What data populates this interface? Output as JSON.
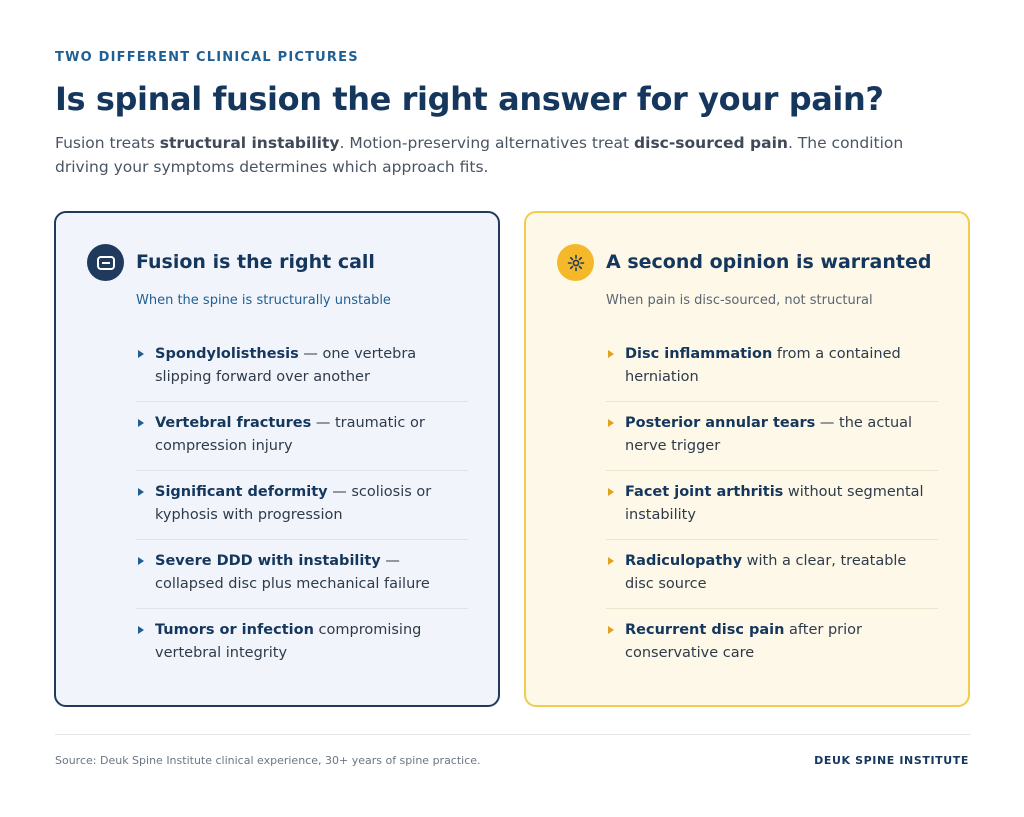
{
  "header": {
    "eyebrow": "TWO DIFFERENT CLINICAL PICTURES",
    "title": "Is spinal fusion the right answer for your pain?",
    "lede": {
      "p1": "Fusion treats ",
      "b1": "structural instability",
      "p2": ". Motion-preserving alternatives treat ",
      "b2": "disc-sourced pain",
      "p3": ". The condition driving your symptoms determines which approach fits."
    }
  },
  "colors": {
    "navy": "#1f3a5c",
    "blue_accent": "#1f5f94",
    "gold": "#f5b82a",
    "left_bg": "#f1f5fb",
    "right_bg": "#fdf8e7"
  },
  "left_card": {
    "icon": "list-icon",
    "title": "Fusion is the right call",
    "subtitle": "When the spine is structurally unstable",
    "items": [
      {
        "key": "Spondylolisthesis",
        "rest": " — one vertebra slipping forward over another"
      },
      {
        "key": "Vertebral fractures",
        "rest": " — traumatic or compression injury"
      },
      {
        "key": "Significant deformity",
        "rest": " — scoliosis or kyphosis with progression"
      },
      {
        "key": "Severe DDD with instability",
        "rest": " — collapsed disc plus mechanical failure"
      },
      {
        "key": "Tumors or infection",
        "rest": " compromising vertebral integrity"
      }
    ]
  },
  "right_card": {
    "icon": "sun-icon",
    "title": "A second opinion is warranted",
    "subtitle": "When pain is disc-sourced, not structural",
    "items": [
      {
        "key": "Disc inflammation",
        "rest": " from a contained herniation"
      },
      {
        "key": "Posterior annular tears",
        "rest": " — the actual nerve trigger"
      },
      {
        "key": "Facet joint arthritis",
        "rest": " without segmental instability"
      },
      {
        "key": "Radiculopathy",
        "rest": " with a clear, treatable disc source"
      },
      {
        "key": "Recurrent disc pain",
        "rest": " after prior conservative care"
      }
    ]
  },
  "footer": {
    "source": "Source: Deuk Spine Institute clinical experience, 30+ years of spine practice.",
    "brand": "DEUK SPINE INSTITUTE"
  }
}
